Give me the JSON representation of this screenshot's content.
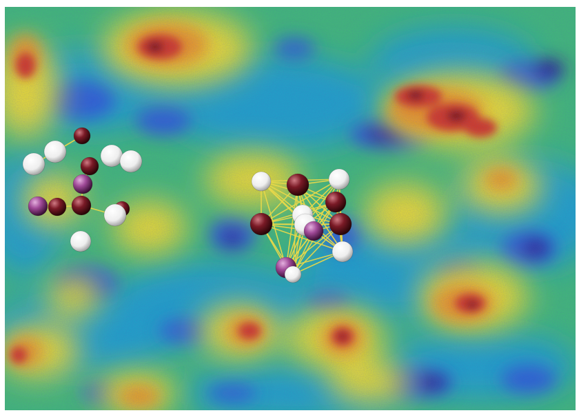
{
  "image": {
    "subject": "",
    "colormap": [
      "#2a1a8c",
      "#2d5bd6",
      "#1fa6c9",
      "#3fbf73",
      "#b9d93c",
      "#f2e22a",
      "#f29a1c",
      "#d9391a",
      "#7a0c0c",
      "#1a0000"
    ],
    "background": "#ffffff",
    "cluster_colors": {
      "dark_red_atom": "#7a1a26",
      "magenta_atom": "#a04a98",
      "white_atom": "#f4f4f4",
      "bond": "#e8d84a"
    }
  }
}
